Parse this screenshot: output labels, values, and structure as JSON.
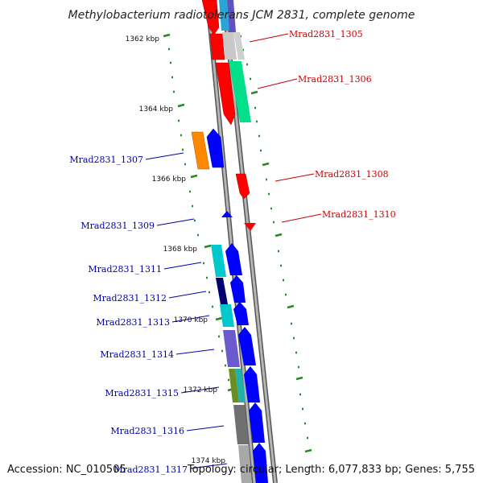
{
  "title": "Methylobacterium radiotolerans JCM 2831, complete genome",
  "footer": {
    "accession": "Accession: NC_010505",
    "summary": "Topology: circular; Length: 6,077,833 bp; Genes: 5,755"
  },
  "kbp_labels": [
    "1362 kbp",
    "1364 kbp",
    "1366 kbp",
    "1368 kbp",
    "1370 kbp",
    "1372 kbp",
    "1374 kbp"
  ],
  "genes": [
    {
      "label": "Mrad2831_1305",
      "strand": "reverse",
      "color": "#cc0000"
    },
    {
      "label": "Mrad2831_1306",
      "strand": "reverse",
      "color": "#cc0000"
    },
    {
      "label": "Mrad2831_1307",
      "strand": "forward",
      "color": "#0000aa"
    },
    {
      "label": "Mrad2831_1308",
      "strand": "reverse",
      "color": "#cc0000"
    },
    {
      "label": "Mrad2831_1309",
      "strand": "forward",
      "color": "#0000aa"
    },
    {
      "label": "Mrad2831_1310",
      "strand": "reverse",
      "color": "#cc0000"
    },
    {
      "label": "Mrad2831_1311",
      "strand": "forward",
      "color": "#0000aa"
    },
    {
      "label": "Mrad2831_1312",
      "strand": "forward",
      "color": "#0000aa"
    },
    {
      "label": "Mrad2831_1313",
      "strand": "forward",
      "color": "#0000aa"
    },
    {
      "label": "Mrad2831_1314",
      "strand": "forward",
      "color": "#0000aa"
    },
    {
      "label": "Mrad2831_1315",
      "strand": "forward",
      "color": "#0000aa"
    },
    {
      "label": "Mrad2831_1316",
      "strand": "forward",
      "color": "#0000aa"
    },
    {
      "label": "Mrad2831_1317",
      "strand": "forward",
      "color": "#0000aa"
    }
  ],
  "colors": {
    "backbone": "#888888",
    "forward_gene": "#0000ff",
    "reverse_gene": "#ff0000",
    "tick": "#228b22",
    "forward_label": "#0000aa",
    "reverse_label": "#cc0000"
  }
}
